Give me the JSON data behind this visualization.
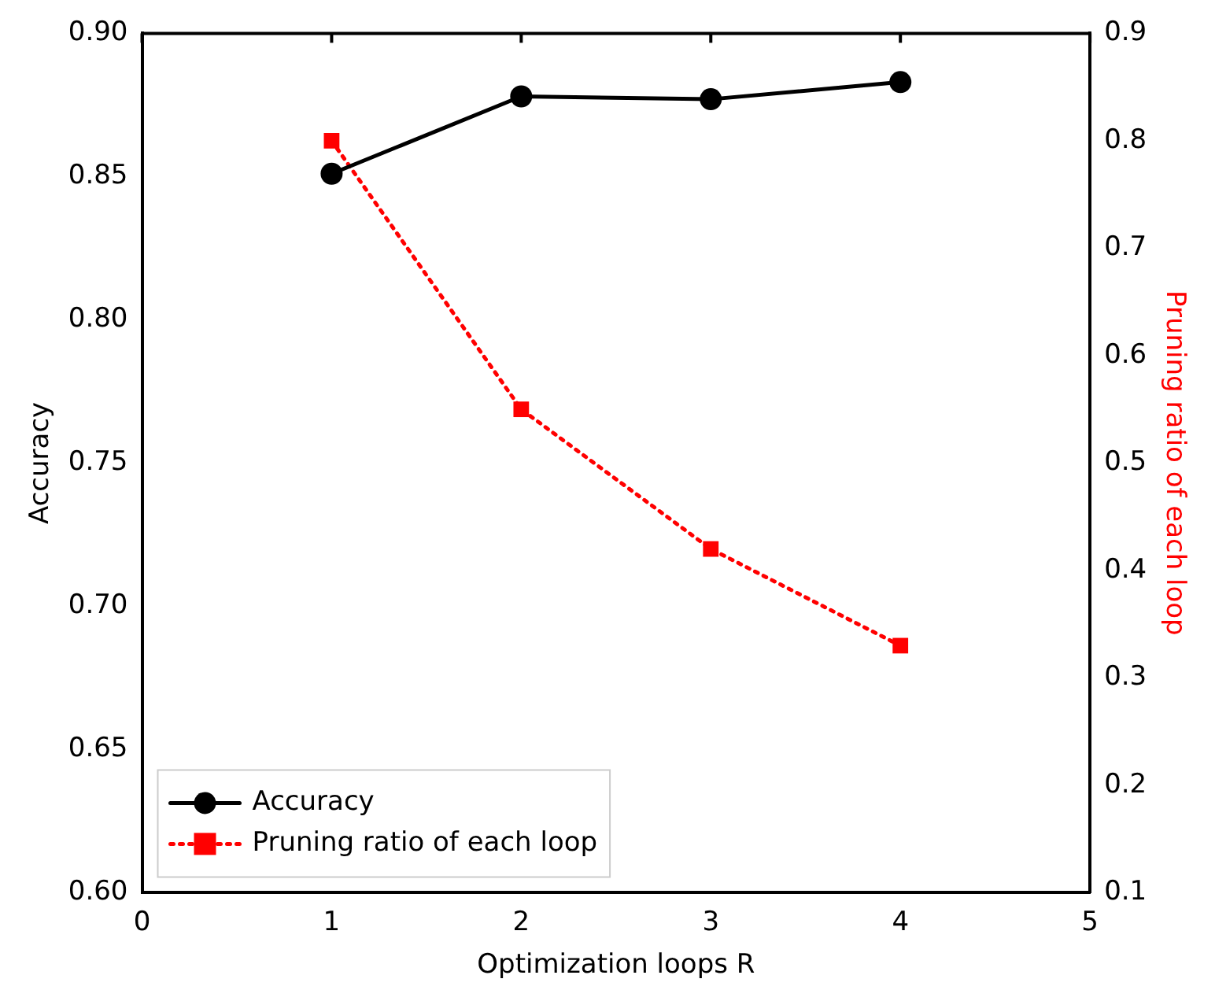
{
  "chart_data": {
    "type": "line",
    "xlabel": "Optimization loops R",
    "ylabel": "Accuracy",
    "y2label": "Pruning ratio of each loop",
    "x": [
      1,
      2,
      3,
      4
    ],
    "series": [
      {
        "name": "Accuracy",
        "color": "#000000",
        "values": [
          0.851,
          0.878,
          0.877,
          0.883
        ],
        "marker": "circle",
        "line_style": "solid"
      },
      {
        "name": "Pruning ratio of each loop",
        "color": "#ff0000",
        "values": [
          0.8,
          0.55,
          0.42,
          0.33
        ],
        "marker": "square",
        "line_style": "dotted",
        "axis": "y2"
      }
    ],
    "xlim": [
      0,
      5
    ],
    "xticks": [
      0,
      1,
      2,
      3,
      4,
      5
    ],
    "ylim": [
      0.6,
      0.9
    ],
    "yticks": [
      {
        "value": 0.6,
        "label": "0.60"
      },
      {
        "value": 0.65,
        "label": "0.65"
      },
      {
        "value": 0.7,
        "label": "0.70"
      },
      {
        "value": 0.75,
        "label": "0.75"
      },
      {
        "value": 0.8,
        "label": "0.80"
      },
      {
        "value": 0.85,
        "label": "0.85"
      },
      {
        "value": 0.9,
        "label": "0.90"
      }
    ],
    "y2lim": [
      0.1,
      0.9
    ],
    "y2ticks": [
      0.1,
      0.2,
      0.3,
      0.4,
      0.5,
      0.6,
      0.7,
      0.8,
      0.9
    ],
    "grid": false,
    "legend": "bottom left"
  }
}
